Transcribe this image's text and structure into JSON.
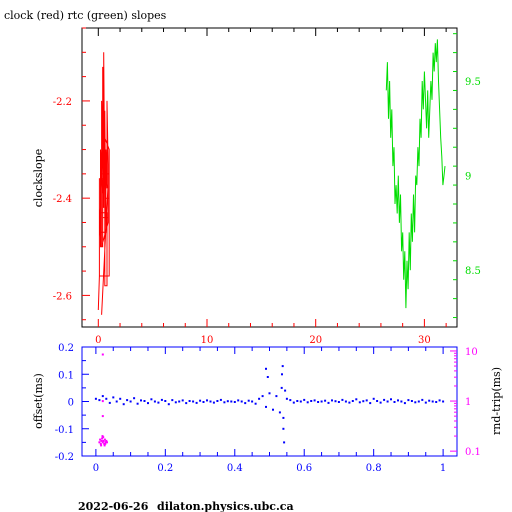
{
  "title": "clock (red) rtc (green) slopes",
  "footer": {
    "date": "2022-06-26",
    "host": "dilaton.physics.ubc.ca"
  },
  "colors": {
    "clock": "#ff0000",
    "rtc": "#00dd00",
    "offset": "#0000ff",
    "rndtrip": "#ff00ff",
    "axis": "#000000"
  },
  "chart_data": [
    {
      "type": "line",
      "title": "clock (red) rtc (green) slopes",
      "xlim": [
        -1.5,
        33
      ],
      "x_ticks": [
        "0",
        "10",
        "20",
        "30"
      ],
      "left_axis": {
        "label": "clockslope",
        "ylim": [
          -2.665,
          -2.05
        ],
        "ticks": [
          "-2.2",
          "-2.4",
          "-2.6"
        ]
      },
      "right_axis": {
        "label": "",
        "ylim": [
          8.2,
          9.78
        ],
        "ticks": [
          "9.5",
          "9",
          "8.5"
        ]
      },
      "series": [
        {
          "color": "#ff0000",
          "axis": "left",
          "x": [
            0.0,
            0.1,
            0.1,
            0.2,
            0.2,
            0.3,
            0.3,
            0.4,
            0.4,
            0.5,
            0.5,
            0.6,
            0.6,
            0.7,
            0.7,
            0.8,
            0.8,
            0.9,
            0.9,
            0.3,
            0.3,
            0.5,
            0.5,
            1.0,
            1.0,
            0.1,
            0.1,
            0.4,
            0.4,
            0.2,
            0.2,
            0.8,
            0.8,
            0.6,
            0.6,
            1.0,
            1.0,
            0.2,
            0.2,
            0.7,
            0.7,
            0.4,
            0.4,
            0.9,
            0.9,
            0.3
          ],
          "y": [
            -2.63,
            -2.56,
            -2.48,
            -2.42,
            -2.3,
            -2.38,
            -2.2,
            -2.35,
            -2.13,
            -2.28,
            -2.1,
            -2.4,
            -2.22,
            -2.46,
            -2.3,
            -2.38,
            -2.2,
            -2.33,
            -2.45,
            -2.5,
            -2.36,
            -2.42,
            -2.27,
            -2.3,
            -2.56,
            -2.56,
            -2.36,
            -2.36,
            -2.5,
            -2.5,
            -2.43,
            -2.43,
            -2.58,
            -2.58,
            -2.4,
            -2.4,
            -2.35,
            -2.35,
            -2.47,
            -2.47,
            -2.34,
            -2.34,
            -2.44,
            -2.44,
            -2.37,
            -2.64
          ]
        },
        {
          "color": "#00dd00",
          "axis": "right",
          "x": [
            26.5,
            26.6,
            26.7,
            26.8,
            26.9,
            27.0,
            27.1,
            27.2,
            27.3,
            27.4,
            27.5,
            27.6,
            27.7,
            27.8,
            27.9,
            28.0,
            28.1,
            28.2,
            28.3,
            28.4,
            28.5,
            28.6,
            28.7,
            28.8,
            28.9,
            29.0,
            29.1,
            29.2,
            29.3,
            29.4,
            29.5,
            29.6,
            29.7,
            29.8,
            29.9,
            30.0,
            30.1,
            30.2,
            30.3,
            30.4,
            30.5,
            30.6,
            30.7,
            30.8,
            30.9,
            31.0,
            31.1,
            31.2,
            31.3,
            31.4,
            31.5,
            31.6,
            31.7,
            31.8,
            31.9
          ],
          "y": [
            9.45,
            9.6,
            9.3,
            9.5,
            9.2,
            9.35,
            9.05,
            9.15,
            8.85,
            8.95,
            8.8,
            9.0,
            8.75,
            8.9,
            8.6,
            8.7,
            8.45,
            8.6,
            8.3,
            8.55,
            8.4,
            8.7,
            8.5,
            8.8,
            8.65,
            8.9,
            8.7,
            9.0,
            8.95,
            9.15,
            9.05,
            9.3,
            9.2,
            9.5,
            9.35,
            9.55,
            9.4,
            9.25,
            9.45,
            9.2,
            9.35,
            9.5,
            9.4,
            9.65,
            9.55,
            9.7,
            9.6,
            9.72,
            9.5,
            9.35,
            9.2,
            9.1,
            8.95,
            9.0,
            9.05
          ]
        }
      ]
    },
    {
      "type": "scatter",
      "xlim": [
        -0.04,
        1.04
      ],
      "x_ticks": [
        "0",
        "0.2",
        "0.4",
        "0.6",
        "0.8",
        "1"
      ],
      "left_axis": {
        "label": "offset(ms)",
        "ylim": [
          -0.2,
          0.2
        ],
        "ticks": [
          "0.2",
          "0.1",
          "0",
          "-0.1",
          "-0.2"
        ],
        "scale": "linear"
      },
      "right_axis": {
        "label": "rnd-trip(ms)",
        "ylim": [
          0.08,
          12
        ],
        "ticks": [
          "10",
          "1",
          "0.1"
        ],
        "scale": "log"
      },
      "series": [
        {
          "color": "#0000ff",
          "axis": "left",
          "style": "points",
          "x": [
            0.0,
            0.01,
            0.02,
            0.03,
            0.04,
            0.05,
            0.06,
            0.07,
            0.08,
            0.09,
            0.1,
            0.11,
            0.12,
            0.13,
            0.14,
            0.15,
            0.16,
            0.17,
            0.18,
            0.19,
            0.2,
            0.21,
            0.22,
            0.23,
            0.24,
            0.25,
            0.26,
            0.27,
            0.28,
            0.29,
            0.3,
            0.31,
            0.32,
            0.33,
            0.34,
            0.35,
            0.36,
            0.37,
            0.38,
            0.39,
            0.4,
            0.41,
            0.42,
            0.43,
            0.44,
            0.45,
            0.46,
            0.47,
            0.48,
            0.49,
            0.5,
            0.51,
            0.52,
            0.53,
            0.535,
            0.54,
            0.545,
            0.55,
            0.56,
            0.57,
            0.58,
            0.59,
            0.6,
            0.61,
            0.62,
            0.63,
            0.64,
            0.65,
            0.66,
            0.67,
            0.68,
            0.69,
            0.7,
            0.71,
            0.72,
            0.73,
            0.74,
            0.75,
            0.76,
            0.77,
            0.78,
            0.79,
            0.8,
            0.81,
            0.82,
            0.83,
            0.84,
            0.85,
            0.86,
            0.87,
            0.88,
            0.89,
            0.9,
            0.91,
            0.92,
            0.93,
            0.94,
            0.95,
            0.96,
            0.97,
            0.98,
            0.99,
            1.0,
            0.49,
            0.495,
            0.538,
            0.54,
            0.542,
            0.536
          ],
          "y": [
            0.01,
            0.005,
            0.02,
            0.01,
            -0.005,
            0.015,
            0.0,
            0.01,
            -0.01,
            0.005,
            0.0,
            0.012,
            -0.008,
            0.004,
            0.002,
            -0.006,
            0.008,
            0.0,
            -0.004,
            0.006,
            0.002,
            -0.01,
            0.005,
            -0.003,
            0.0,
            0.004,
            -0.006,
            0.002,
            0.0,
            -0.005,
            0.003,
            -0.002,
            0.004,
            0.0,
            -0.004,
            0.002,
            0.006,
            -0.003,
            0.001,
            0.0,
            -0.002,
            0.004,
            0.0,
            -0.006,
            0.003,
            0.0,
            -0.008,
            0.01,
            0.02,
            -0.02,
            0.03,
            -0.03,
            0.02,
            -0.04,
            0.05,
            -0.06,
            0.04,
            0.01,
            0.005,
            -0.004,
            0.002,
            0.0,
            0.006,
            -0.003,
            0.002,
            0.004,
            -0.002,
            0.0,
            0.003,
            -0.005,
            0.004,
            0.001,
            -0.002,
            0.006,
            0.0,
            -0.004,
            0.002,
            0.008,
            -0.003,
            0.001,
            0.004,
            -0.006,
            0.01,
            0.002,
            -0.004,
            0.006,
            0.0,
            0.008,
            -0.002,
            0.004,
            0.0,
            -0.006,
            0.005,
            0.002,
            -0.003,
            0.0,
            0.006,
            -0.004,
            0.003,
            0.0,
            -0.002,
            0.004,
            0.0,
            0.12,
            0.09,
            0.13,
            -0.1,
            -0.15,
            0.1
          ]
        },
        {
          "color": "#ff00ff",
          "axis": "right",
          "style": "points",
          "x": [
            0.01,
            0.012,
            0.014,
            0.016,
            0.018,
            0.02,
            0.022,
            0.024,
            0.026,
            0.028,
            0.03,
            0.032,
            0.015,
            0.021,
            0.027,
            0.019,
            0.025,
            0.02,
            0.02,
            0.02
          ],
          "y": [
            0.15,
            0.17,
            0.14,
            0.16,
            0.18,
            0.15,
            0.16,
            0.14,
            0.17,
            0.15,
            0.16,
            0.15,
            0.13,
            0.19,
            0.14,
            0.2,
            0.13,
            0.5,
            1.0,
            8.5
          ]
        }
      ]
    }
  ]
}
